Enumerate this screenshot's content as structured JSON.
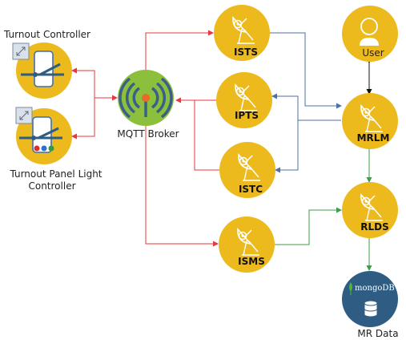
{
  "nodes": {
    "turnout_controller": {
      "label": "Turnout Controller"
    },
    "turnout_panel_light": {
      "label_line1": "Turnout Panel Light",
      "label_line2": "Controller"
    },
    "mqtt_broker": {
      "label": "MQTT Broker"
    },
    "ists": {
      "label": "ISTS"
    },
    "ipts": {
      "label": "IPTS"
    },
    "istc": {
      "label": "ISTC"
    },
    "isms": {
      "label": "ISMS"
    },
    "user": {
      "label": "User"
    },
    "mrlm": {
      "label": "MRLM"
    },
    "rlds": {
      "label": "RLDS"
    },
    "mr_data": {
      "label": "MR Data",
      "badge": "mongoDB"
    }
  },
  "colors": {
    "node_fill": "#EDBA1E",
    "broker_fill": "#8CC03C",
    "db_fill": "#2E5C82",
    "edge_red": "#E8383B",
    "edge_blue": "#4A72A8",
    "edge_green": "#3C9E46",
    "edge_black": "#111111"
  },
  "icons": {
    "turnout_controller": "phone-switch-icon",
    "turnout_panel_light": "phone-panel-icon",
    "mqtt_broker": "broadcast-antenna-icon",
    "services": "satellite-dish-icon",
    "user": "person-icon",
    "mr_data": "database-icon"
  }
}
